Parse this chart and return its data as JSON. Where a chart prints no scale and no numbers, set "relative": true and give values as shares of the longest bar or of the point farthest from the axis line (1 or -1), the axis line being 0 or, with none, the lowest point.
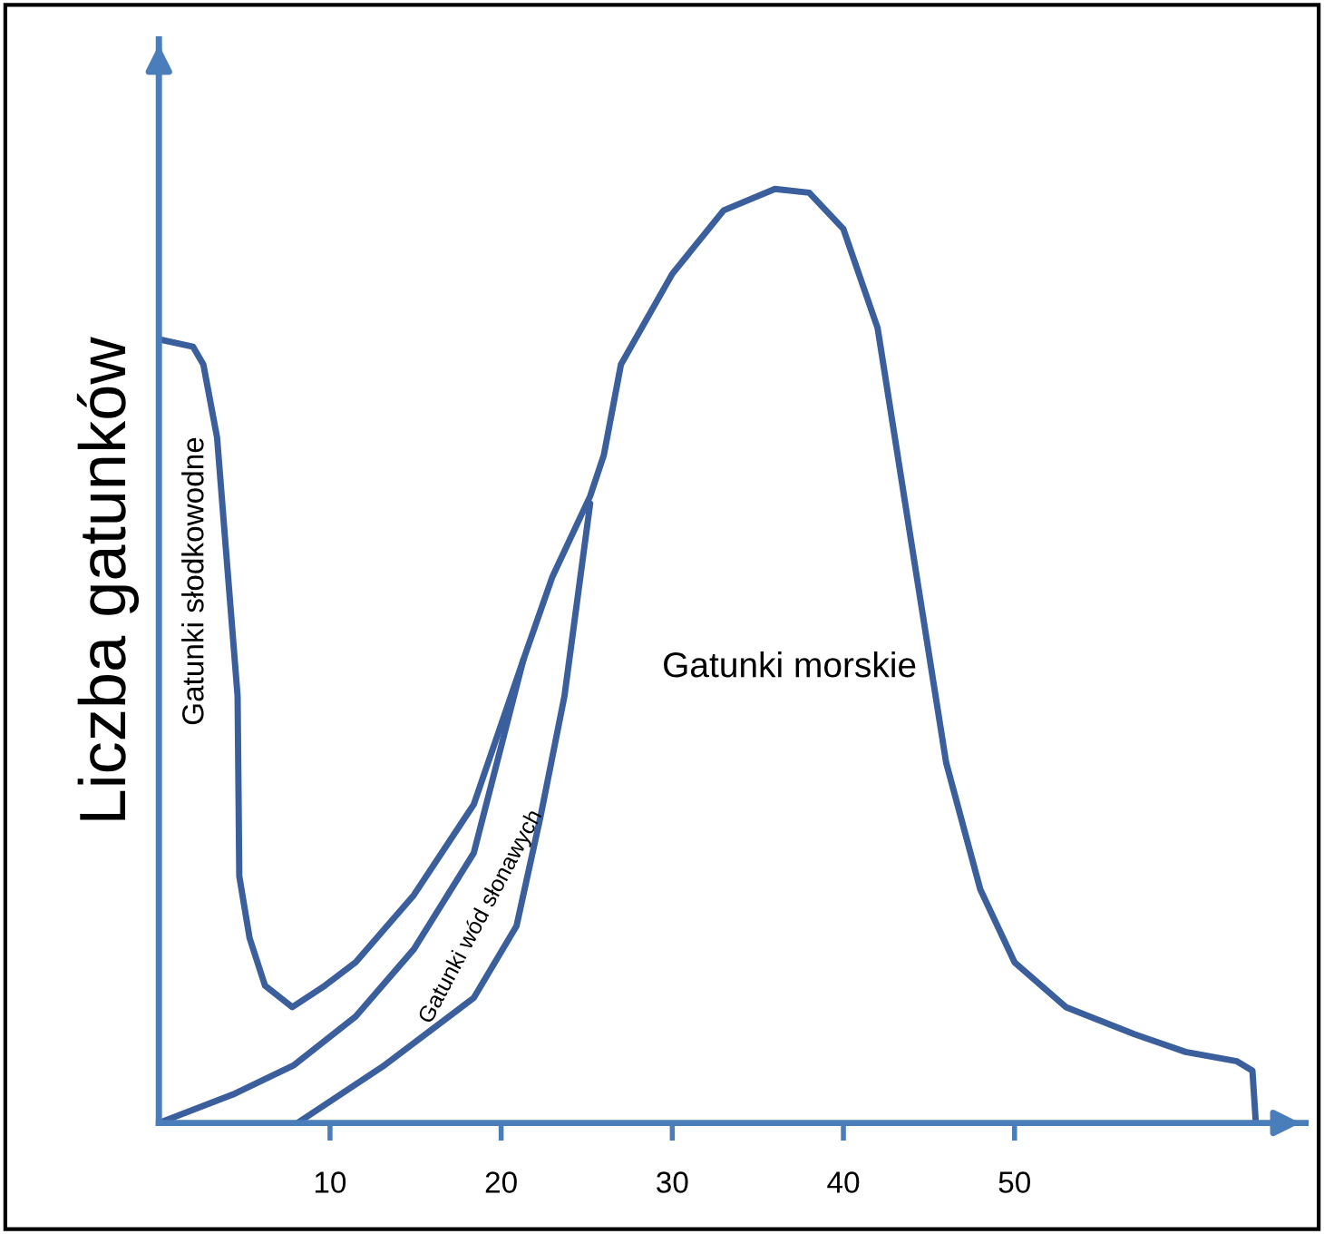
{
  "chart_data": {
    "type": "line",
    "relative": true,
    "ylabel": "Liczba gatunków",
    "xlim": [
      0,
      67
    ],
    "xticks": [
      10,
      20,
      30,
      40,
      50
    ],
    "grid": false,
    "legend": false,
    "marker": "none",
    "line_style": "solid",
    "annotations": [
      "Gatunki słodkowodne",
      "Gatunki wód słonawych",
      "Gatunki morskie"
    ],
    "series": [
      {
        "color": "#3a5f9c",
        "x": [
          0,
          2,
          2.6,
          3.4,
          3.9,
          4.6,
          4.7,
          5.3,
          6.2,
          7.8,
          9.7,
          11.5,
          14.9,
          18.4,
          21.3,
          23,
          25.2,
          26,
          27,
          30,
          33,
          36,
          38,
          40,
          42,
          44,
          46,
          48,
          50,
          53,
          57,
          60,
          63,
          63.9,
          64.1
        ],
        "values": [
          0.839,
          0.831,
          0.812,
          0.734,
          0.618,
          0.457,
          0.264,
          0.198,
          0.147,
          0.124,
          0.147,
          0.172,
          0.244,
          0.341,
          0.496,
          0.585,
          0.671,
          0.715,
          0.812,
          0.909,
          0.977,
          1,
          0.996,
          0.957,
          0.851,
          0.618,
          0.386,
          0.25,
          0.172,
          0.124,
          0.095,
          0.076,
          0.066,
          0.056,
          0
        ]
      },
      {
        "color": "#3a5f9c",
        "x": [
          0,
          4.4,
          7.9,
          11.5,
          14.9,
          18.4,
          21.3
        ],
        "values": [
          0,
          0.031,
          0.062,
          0.114,
          0.186,
          0.289,
          0.496
        ]
      },
      {
        "color": "#3a5f9c",
        "x": [
          8.1,
          13.2,
          18.4,
          20.9,
          22.3,
          23.7,
          25.2
        ],
        "values": [
          0,
          0.062,
          0.134,
          0.211,
          0.328,
          0.457,
          0.663
        ]
      }
    ]
  }
}
